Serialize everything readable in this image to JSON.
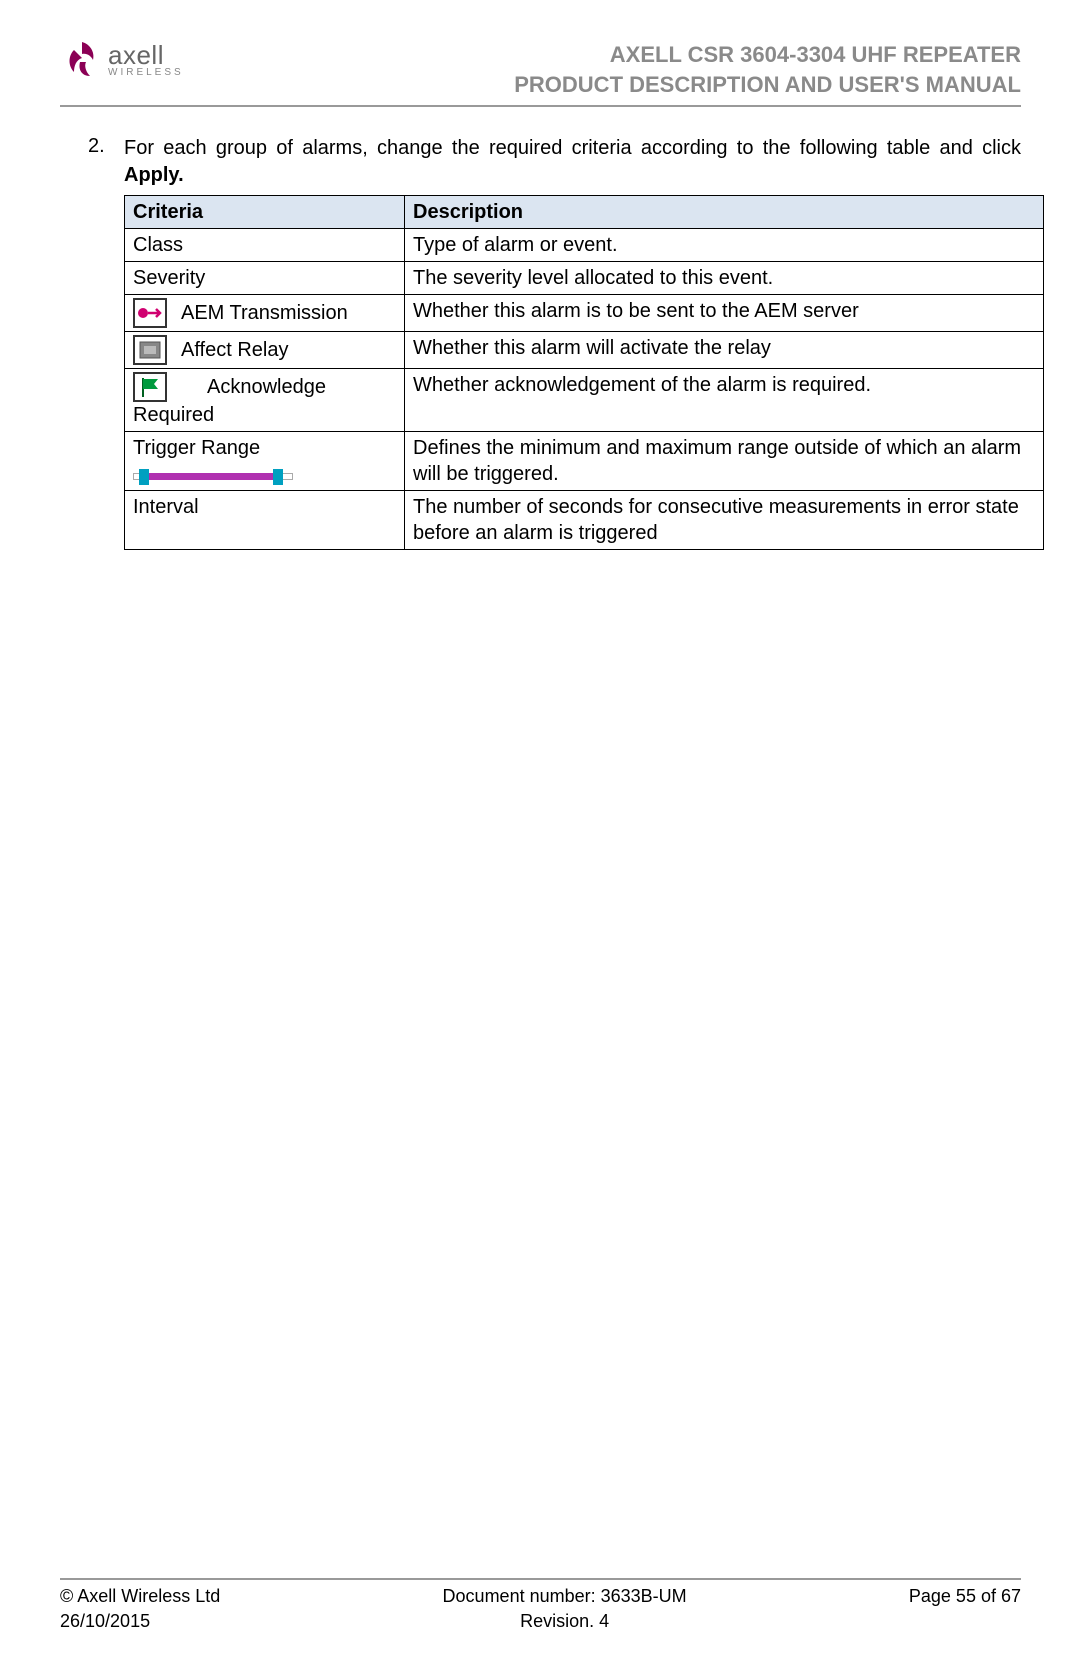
{
  "header": {
    "logo_name": "axell",
    "logo_sub": "WIRELESS",
    "title_line1": "AXELL CSR 3604-3304 UHF REPEATER",
    "title_line2": "PRODUCT DESCRIPTION AND USER'S MANUAL"
  },
  "instruction": {
    "number": "2.",
    "text_before": "For each group of alarms, change the required criteria according to the following table and click ",
    "text_bold": "Apply."
  },
  "table": {
    "header_bg": "#dbe5f1",
    "border_color": "#000000",
    "columns": [
      "Criteria",
      "Description"
    ],
    "rows": [
      {
        "criteria_type": "text",
        "criteria": "Class",
        "description": "Type of alarm or event."
      },
      {
        "criteria_type": "text",
        "criteria": "Severity",
        "description": "The severity level allocated to this event."
      },
      {
        "criteria_type": "icon",
        "icon": "aem",
        "criteria": "AEM Transmission",
        "description": "Whether this alarm is to be sent to the AEM server"
      },
      {
        "criteria_type": "icon",
        "icon": "relay",
        "criteria": "Affect Relay",
        "description": "Whether this alarm will activate the relay"
      },
      {
        "criteria_type": "icon-wrap",
        "icon": "flag",
        "criteria_top": "Acknowledge",
        "criteria_bottom": "Required",
        "description": "Whether acknowledgement of the alarm is required."
      },
      {
        "criteria_type": "slider",
        "criteria": "Trigger Range",
        "description": "Defines the minimum and maximum range outside of which an alarm will be triggered.",
        "justify": true
      },
      {
        "criteria_type": "text",
        "criteria": "Interval",
        "description": "The number of seconds for consecutive measurements in error state before an alarm is triggered",
        "justify": true
      }
    ]
  },
  "footer": {
    "copyright": "© Axell Wireless Ltd",
    "date": "26/10/2015",
    "doc_number": "Document number: 3633B-UM",
    "revision": "Revision. 4",
    "page": "Page 55 of 67"
  },
  "colors": {
    "logo_accent": "#8b0055",
    "header_rule": "#999999",
    "title_color": "#8a8a8a",
    "slider_fill": "#b030b0",
    "slider_handle": "#00a0c0",
    "flag_green": "#009a3e"
  }
}
